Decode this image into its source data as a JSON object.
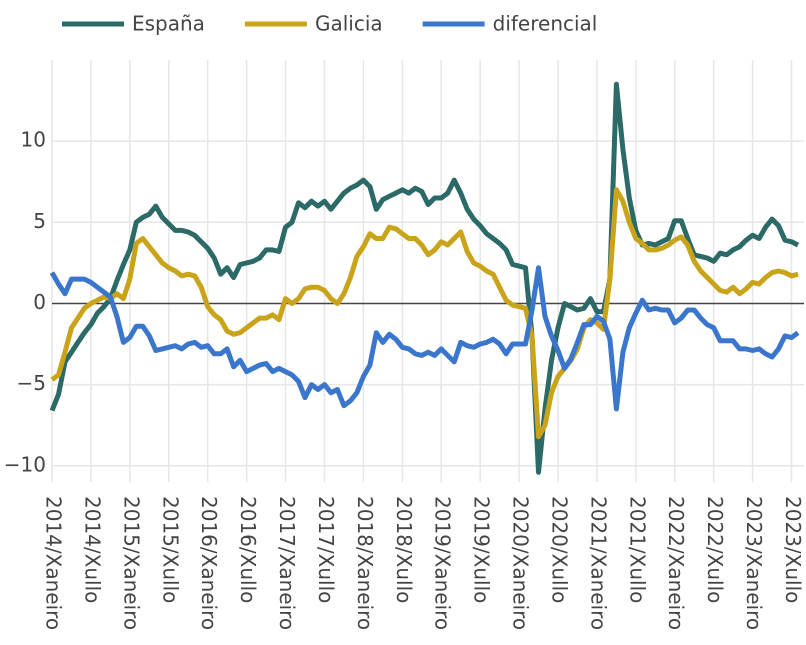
{
  "chart_data": {
    "type": "line",
    "categories": [
      "2014/Xaneiro",
      null,
      null,
      null,
      null,
      null,
      "2014/Xullo",
      null,
      null,
      null,
      null,
      null,
      "2015/Xaneiro",
      null,
      null,
      null,
      null,
      null,
      "2015/Xullo",
      null,
      null,
      null,
      null,
      null,
      "2016/Xaneiro",
      null,
      null,
      null,
      null,
      null,
      "2016/Xullo",
      null,
      null,
      null,
      null,
      null,
      "2017/Xaneiro",
      null,
      null,
      null,
      null,
      null,
      "2017/Xullo",
      null,
      null,
      null,
      null,
      null,
      "2018/Xaneiro",
      null,
      null,
      null,
      null,
      null,
      "2018/Xullo",
      null,
      null,
      null,
      null,
      null,
      "2019/Xaneiro",
      null,
      null,
      null,
      null,
      null,
      "2019/Xullo",
      null,
      null,
      null,
      null,
      null,
      "2020/Xaneiro",
      null,
      null,
      null,
      null,
      null,
      "2020/Xullo",
      null,
      null,
      null,
      null,
      null,
      "2021/Xaneiro",
      null,
      null,
      null,
      null,
      null,
      "2021/Xullo",
      null,
      null,
      null,
      null,
      null,
      "2022/Xaneiro",
      null,
      null,
      null,
      null,
      null,
      "2022/Xullo",
      null,
      null,
      null,
      null,
      null,
      "2023/Xaneiro",
      null,
      null,
      null,
      null,
      null,
      "2023/Xullo",
      null
    ],
    "series": [
      {
        "name": "España",
        "color": "#2b6a67",
        "values": [
          -6.6,
          -5.6,
          -3.6,
          -3.0,
          -2.4,
          -1.8,
          -1.3,
          -0.6,
          -0.2,
          0.3,
          1.4,
          2.4,
          3.3,
          5.0,
          5.3,
          5.5,
          6.0,
          5.3,
          4.9,
          4.5,
          4.5,
          4.4,
          4.2,
          3.8,
          3.4,
          2.8,
          1.8,
          2.2,
          1.6,
          2.4,
          2.5,
          2.6,
          2.8,
          3.3,
          3.3,
          3.2,
          4.7,
          5.0,
          6.2,
          5.9,
          6.3,
          6.0,
          6.3,
          5.8,
          6.3,
          6.8,
          7.1,
          7.3,
          7.6,
          7.2,
          5.8,
          6.4,
          6.6,
          6.8,
          7.0,
          6.8,
          7.1,
          6.9,
          6.1,
          6.5,
          6.5,
          6.8,
          7.6,
          6.8,
          5.8,
          5.2,
          4.8,
          4.3,
          4.0,
          3.7,
          3.3,
          2.4,
          2.3,
          2.2,
          -2.0,
          -10.4,
          -6.5,
          -3.5,
          -1.5,
          0.0,
          -0.2,
          -0.4,
          -0.3,
          0.3,
          -0.5,
          -0.5,
          1.5,
          13.5,
          9.5,
          6.5,
          4.5,
          3.6,
          3.7,
          3.6,
          3.8,
          4.0,
          5.1,
          5.1,
          4.0,
          3.0,
          2.9,
          2.8,
          2.6,
          3.1,
          3.0,
          3.3,
          3.5,
          3.9,
          4.2,
          4.0,
          4.7,
          5.2,
          4.8,
          3.9,
          3.8,
          3.6
        ]
      },
      {
        "name": "Galicia",
        "color": "#c9a31a",
        "values": [
          -4.7,
          -4.4,
          -3.0,
          -1.5,
          -0.9,
          -0.3,
          0.0,
          0.2,
          0.4,
          0.3,
          0.6,
          0.3,
          1.5,
          3.7,
          4.0,
          3.5,
          3.0,
          2.5,
          2.2,
          2.0,
          1.7,
          1.8,
          1.7,
          1.0,
          -0.2,
          -0.7,
          -1.0,
          -1.7,
          -1.9,
          -1.8,
          -1.5,
          -1.2,
          -0.9,
          -0.9,
          -0.7,
          -1.0,
          0.3,
          0.0,
          0.3,
          0.9,
          1.0,
          1.0,
          0.8,
          0.3,
          0.0,
          0.6,
          1.6,
          2.9,
          3.5,
          4.3,
          4.0,
          4.0,
          4.7,
          4.6,
          4.3,
          4.0,
          4.0,
          3.6,
          3.0,
          3.3,
          3.8,
          3.6,
          4.0,
          4.4,
          3.2,
          2.5,
          2.3,
          2.0,
          1.8,
          1.0,
          0.2,
          -0.1,
          -0.2,
          -0.3,
          -2.0,
          -8.2,
          -7.5,
          -5.5,
          -4.5,
          -4.0,
          -3.5,
          -2.8,
          -1.5,
          -1.0,
          -1.2,
          -1.6,
          1.5,
          7.0,
          6.3,
          5.0,
          4.0,
          3.7,
          3.3,
          3.3,
          3.4,
          3.6,
          3.9,
          4.1,
          3.6,
          2.6,
          2.0,
          1.6,
          1.2,
          0.8,
          0.7,
          1.0,
          0.6,
          0.9,
          1.3,
          1.2,
          1.6,
          1.9,
          2.0,
          1.9,
          1.7,
          1.8
        ]
      },
      {
        "name": "diferencial",
        "color": "#3a76cc",
        "values": [
          1.9,
          1.2,
          0.6,
          1.5,
          1.5,
          1.5,
          1.3,
          1.0,
          0.7,
          0.4,
          -0.8,
          -2.4,
          -2.1,
          -1.4,
          -1.4,
          -2.0,
          -2.9,
          -2.8,
          -2.7,
          -2.6,
          -2.8,
          -2.5,
          -2.4,
          -2.7,
          -2.6,
          -3.1,
          -3.1,
          -2.8,
          -3.9,
          -3.5,
          -4.2,
          -4.0,
          -3.8,
          -3.7,
          -4.2,
          -4.0,
          -4.2,
          -4.4,
          -4.8,
          -5.8,
          -5.0,
          -5.3,
          -5.0,
          -5.5,
          -5.3,
          -6.3,
          -6.0,
          -5.5,
          -4.5,
          -3.8,
          -1.8,
          -2.4,
          -1.9,
          -2.2,
          -2.7,
          -2.8,
          -3.1,
          -3.2,
          -3.0,
          -3.2,
          -2.8,
          -3.2,
          -3.6,
          -2.4,
          -2.6,
          -2.7,
          -2.5,
          -2.4,
          -2.2,
          -2.5,
          -3.1,
          -2.5,
          -2.5,
          -2.5,
          -0.4,
          2.2,
          -0.8,
          -2.0,
          -2.9,
          -4.0,
          -3.4,
          -2.4,
          -1.3,
          -1.3,
          -0.8,
          -1.1,
          -2.2,
          -6.5,
          -3.0,
          -1.5,
          -0.6,
          0.2,
          -0.4,
          -0.3,
          -0.4,
          -0.4,
          -1.2,
          -0.9,
          -0.4,
          -0.4,
          -0.9,
          -1.3,
          -1.5,
          -2.3,
          -2.3,
          -2.3,
          -2.8,
          -2.8,
          -2.9,
          -2.8,
          -3.1,
          -3.3,
          -2.8,
          -2.0,
          -2.1,
          -1.8
        ]
      }
    ],
    "ylim": [
      -11,
      15
    ],
    "yticks": [
      {
        "value": -10,
        "label": "−10"
      },
      {
        "value": -5,
        "label": "−5"
      },
      0,
      5,
      10
    ],
    "grid": true,
    "legend": "top"
  }
}
